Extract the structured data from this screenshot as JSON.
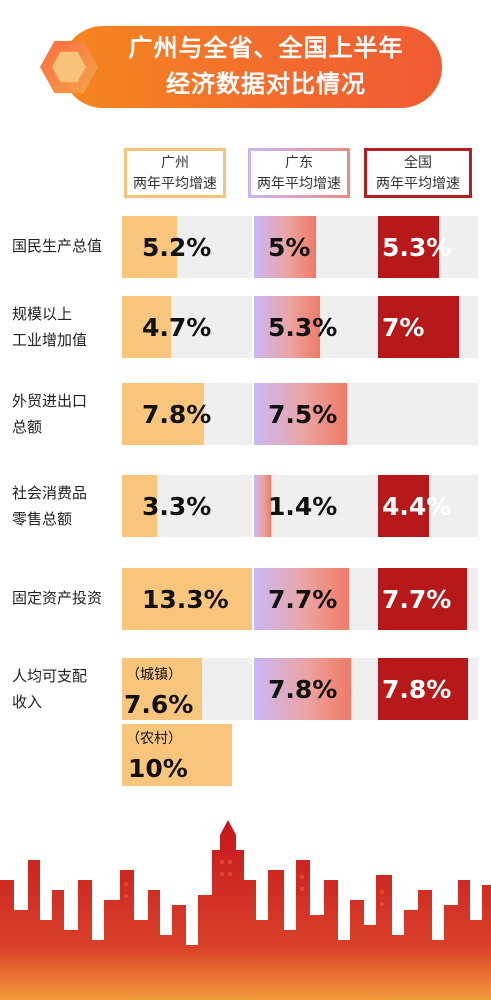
{
  "title": {
    "line1": "广州与全省、全国上半年",
    "line2": "经济数据对比情况"
  },
  "colors": {
    "guangzhou": "#f8c57d",
    "guangdong_start": "#cbb8f6",
    "guangdong_end": "#f07a68",
    "national": "#b7191b",
    "banner": "#f26a2e"
  },
  "chart_data": {
    "type": "bar",
    "orientation": "horizontal",
    "unit": "%",
    "series": [
      {
        "name": "广州 两年平均增速",
        "key": "gz"
      },
      {
        "name": "广东 两年平均增速",
        "key": "gd"
      },
      {
        "name": "全国 两年平均增速",
        "key": "cn"
      }
    ],
    "categories": [
      {
        "label_lines": [
          "国民生产总值"
        ],
        "gz": 5.2,
        "gd": 5,
        "cn": 5.3,
        "gz_text": "5.2%",
        "gd_text": "5%",
        "cn_text": "5.3%"
      },
      {
        "label_lines": [
          "规模以上",
          "工业增加值"
        ],
        "gz": 4.7,
        "gd": 5.3,
        "cn": 7,
        "gz_text": "4.7%",
        "gd_text": "5.3%",
        "cn_text": "7%"
      },
      {
        "label_lines": [
          "外贸进出口",
          "总额"
        ],
        "gz": 7.8,
        "gd": 7.5,
        "cn": null,
        "gz_text": "7.8%",
        "gd_text": "7.5%",
        "cn_text": ""
      },
      {
        "label_lines": [
          "社会消费品",
          "零售总额"
        ],
        "gz": 3.3,
        "gd": 1.4,
        "cn": 4.4,
        "gz_text": "3.3%",
        "gd_text": "1.4%",
        "cn_text": "4.4%"
      },
      {
        "label_lines": [
          "固定资产投资"
        ],
        "gz": 13.3,
        "gd": 7.7,
        "cn": 7.7,
        "gz_text": "13.3%",
        "gd_text": "7.7%",
        "cn_text": "7.7%"
      },
      {
        "label_lines": [
          "人均可支配",
          "收入"
        ],
        "gz": 7.6,
        "gd": 7.8,
        "cn": 7.8,
        "gz_text": "7.6%",
        "gd_text": "7.8%",
        "cn_text": "7.8%",
        "gz_sub": "（城镇）",
        "gz_extra": 10,
        "gz_extra_text": "10%",
        "gz_extra_sub": "（农村）"
      }
    ]
  },
  "headers": {
    "gz": {
      "line1": "广州",
      "line2": "两年平均增速"
    },
    "gd": {
      "line1": "广东",
      "line2": "两年平均增速"
    },
    "cn": {
      "line1": "全国",
      "line2": "两年平均增速"
    }
  }
}
